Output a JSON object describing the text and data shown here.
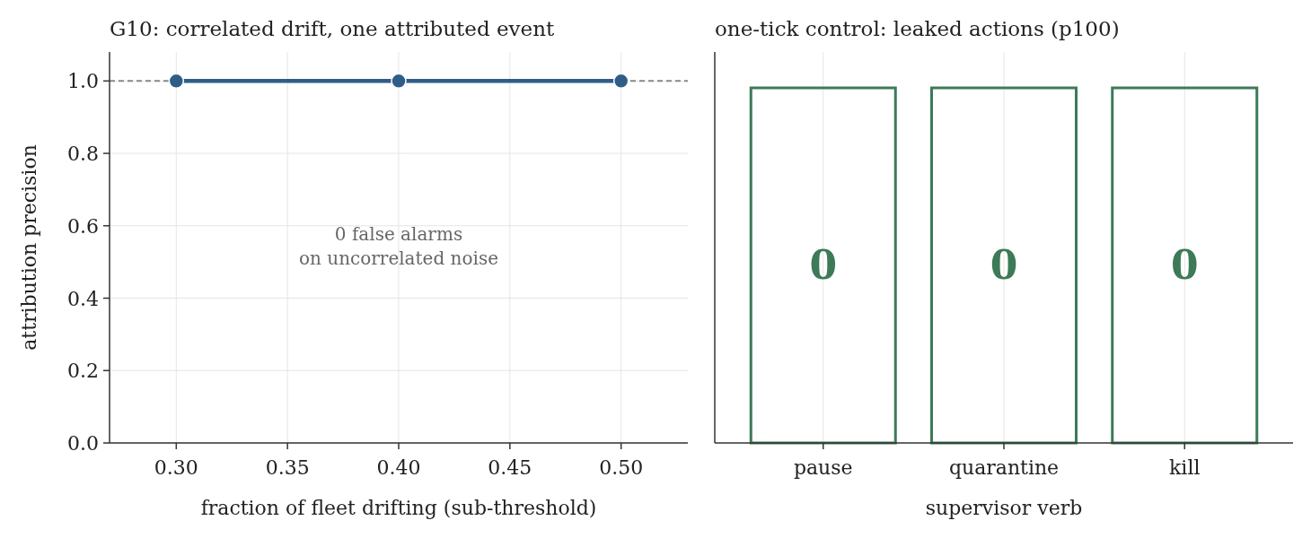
{
  "chart_data": [
    {
      "type": "line",
      "title": "G10: correlated drift, one attributed event",
      "xlabel": "fraction of fleet drifting (sub-threshold)",
      "ylabel": "attribution precision",
      "x": [
        0.3,
        0.4,
        0.5
      ],
      "values": [
        1,
        1,
        1
      ],
      "color": "#2f5d87",
      "marker": "circle",
      "xlim": [
        0.27,
        0.53
      ],
      "ylim": [
        0,
        1.08
      ],
      "xticks": [
        {
          "value": 0.3,
          "label": "0.30"
        },
        {
          "value": 0.35,
          "label": "0.35"
        },
        {
          "value": 0.4,
          "label": "0.40"
        },
        {
          "value": 0.45,
          "label": "0.45"
        },
        {
          "value": 0.5,
          "label": "0.50"
        }
      ],
      "yticks": [
        {
          "value": 0,
          "label": "0.0"
        },
        {
          "value": 0.2,
          "label": "0.2"
        },
        {
          "value": 0.4,
          "label": "0.4"
        },
        {
          "value": 0.6,
          "label": "0.6"
        },
        {
          "value": 0.8,
          "label": "0.8"
        },
        {
          "value": 1,
          "label": "1.0"
        }
      ],
      "grid": true,
      "ref_lines": [
        {
          "axis": "y",
          "value": 1,
          "color": "#888888",
          "line_style": "dashed"
        }
      ],
      "annotations": [
        "0 false alarms\non uncorrelated noise"
      ]
    },
    {
      "type": "other",
      "title": "one-tick control: leaked actions (p100)",
      "xlabel": "supervisor verb",
      "categories": [
        "pause",
        "quarantine",
        "kill"
      ],
      "values": [
        0,
        0,
        0
      ],
      "color": "#3d7a57",
      "data_labels": true
    }
  ]
}
